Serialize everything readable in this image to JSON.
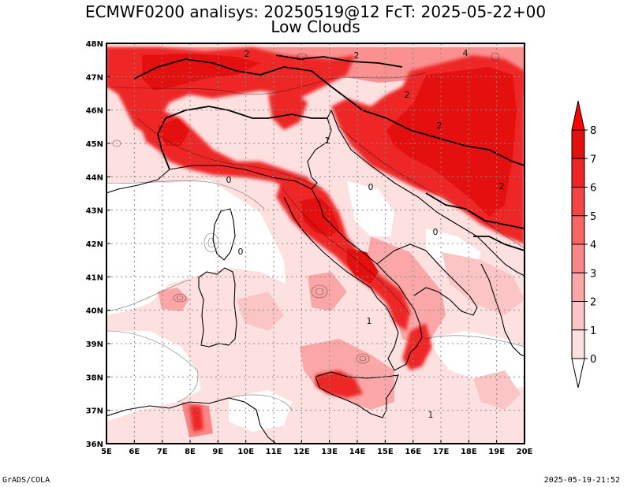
{
  "title": "ECMWF0200 analisys: 20250519@12 FcT: 2025-05-22+00",
  "subtitle": "Low Clouds",
  "footer_left": "GrADS/COLA",
  "footer_right": "2025-05-19-21:52",
  "map": {
    "lon_range": [
      5,
      20
    ],
    "lat_range": [
      36,
      48
    ],
    "lon_ticks": [
      "5E",
      "6E",
      "7E",
      "8E",
      "9E",
      "10E",
      "11E",
      "12E",
      "13E",
      "14E",
      "15E",
      "16E",
      "17E",
      "18E",
      "19E",
      "20E"
    ],
    "lat_ticks": [
      "36N",
      "37N",
      "38N",
      "39N",
      "40N",
      "41N",
      "42N",
      "43N",
      "44N",
      "45N",
      "46N",
      "47N",
      "48N"
    ],
    "grid": true,
    "variable": "low cloud cover (oktas)"
  },
  "legend": {
    "position": "right",
    "levels": [
      "0",
      "1",
      "2",
      "3",
      "4",
      "5",
      "6",
      "7",
      "8"
    ],
    "colors": [
      "#ffffff",
      "#fde0e0",
      "#fcc5c5",
      "#fba7a7",
      "#f98787",
      "#f76565",
      "#f44545",
      "#ee2626",
      "#e41010",
      "#ff0000"
    ]
  },
  "contour_labels": [
    "0",
    "0",
    "0",
    "0",
    "2",
    "2",
    "2",
    "2",
    "2",
    "4",
    "1",
    "1",
    "1"
  ]
}
